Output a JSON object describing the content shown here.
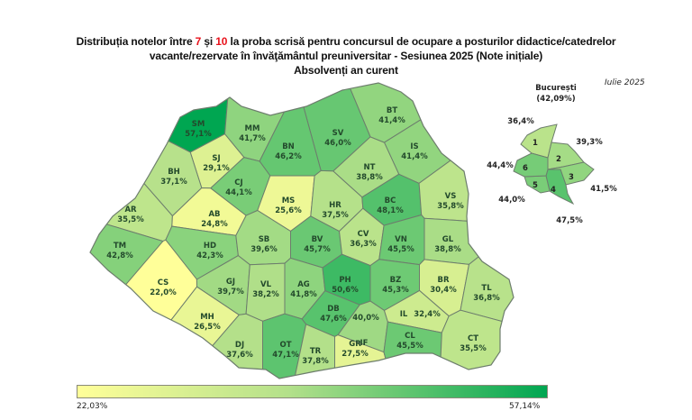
{
  "title": {
    "line1_a": "Distribuția notelor între ",
    "line1_7": "7",
    "line1_b": " și ",
    "line1_10": "10",
    "line1_c": " la proba scrisă pentru concursul de ocupare a posturilor didactice/catedrelor",
    "line2": "vacante/rezervate în învăţământul preuniversitar - Sesiunea 2025 (Note inițiale)",
    "line3": "Absolvenți an curent"
  },
  "date": "Iulie 2025",
  "colors": {
    "scale_low": "#ffff99",
    "scale_mid": "#b3e08a",
    "scale_high": "#00a651",
    "border": "#6d7d6d",
    "label": "#234a2c",
    "highlight": "#e8111b"
  },
  "legend": {
    "min_label": "22,03%",
    "max_label": "57,14%",
    "min": 22.03,
    "max": 57.14
  },
  "counties": [
    {
      "code": "SM",
      "value": 57.1,
      "label": "57,1%"
    },
    {
      "code": "MM",
      "value": 41.7,
      "label": "41,7%"
    },
    {
      "code": "BT",
      "value": 41.4,
      "label": "41,4%"
    },
    {
      "code": "SV",
      "value": 46.0,
      "label": "46,0%"
    },
    {
      "code": "BN",
      "value": 46.2,
      "label": "46,2%"
    },
    {
      "code": "IS",
      "value": 41.4,
      "label": "41,4%"
    },
    {
      "code": "SJ",
      "value": 29.1,
      "label": "29,1%"
    },
    {
      "code": "BH",
      "value": 37.1,
      "label": "37,1%"
    },
    {
      "code": "CJ",
      "value": 44.1,
      "label": "44,1%"
    },
    {
      "code": "NT",
      "value": 38.8,
      "label": "38,8%"
    },
    {
      "code": "MS",
      "value": 25.6,
      "label": "25,6%"
    },
    {
      "code": "AR",
      "value": 35.5,
      "label": "35,5%"
    },
    {
      "code": "AB",
      "value": 24.8,
      "label": "24,8%"
    },
    {
      "code": "HR",
      "value": 37.5,
      "label": "37,5%"
    },
    {
      "code": "BC",
      "value": 48.1,
      "label": "48,1%"
    },
    {
      "code": "VS",
      "value": 35.8,
      "label": "35,8%"
    },
    {
      "code": "TM",
      "value": 42.8,
      "label": "42,8%"
    },
    {
      "code": "HD",
      "value": 42.3,
      "label": "42,3%"
    },
    {
      "code": "SB",
      "value": 39.6,
      "label": "39,6%"
    },
    {
      "code": "BV",
      "value": 45.7,
      "label": "45,7%"
    },
    {
      "code": "CV",
      "value": 36.3,
      "label": "36,3%"
    },
    {
      "code": "VN",
      "value": 45.5,
      "label": "45,5%"
    },
    {
      "code": "GL",
      "value": 38.8,
      "label": "38,8%"
    },
    {
      "code": "CS",
      "value": 22.0,
      "label": "22,0%"
    },
    {
      "code": "GJ",
      "value": 39.7,
      "label": "39,7%"
    },
    {
      "code": "VL",
      "value": 38.2,
      "label": "38,2%"
    },
    {
      "code": "AG",
      "value": 41.8,
      "label": "41,8%"
    },
    {
      "code": "PH",
      "value": 50.6,
      "label": "50,6%"
    },
    {
      "code": "BZ",
      "value": 45.3,
      "label": "45,3%"
    },
    {
      "code": "BR",
      "value": 30.4,
      "label": "30,4%"
    },
    {
      "code": "TL",
      "value": 36.8,
      "label": "36,8%"
    },
    {
      "code": "MH",
      "value": 26.5,
      "label": "26,5%"
    },
    {
      "code": "DB",
      "value": 47.6,
      "label": "47,6%"
    },
    {
      "code": "IF",
      "value": 40.0,
      "label": "40,0%"
    },
    {
      "code": "IL",
      "value": 32.4,
      "label": "32,4%"
    },
    {
      "code": "DJ",
      "value": 37.6,
      "label": "37,6%"
    },
    {
      "code": "OT",
      "value": 47.1,
      "label": "47,1%"
    },
    {
      "code": "TR",
      "value": 37.8,
      "label": "37,8%"
    },
    {
      "code": "GR",
      "value": 27.5,
      "label": "27,5%"
    },
    {
      "code": "CL",
      "value": 45.5,
      "label": "45,5%"
    },
    {
      "code": "CT",
      "value": 35.5,
      "label": "35,5%"
    }
  ],
  "bucharest": {
    "name": "București",
    "total_label": "(42,09%)",
    "sectors": [
      {
        "number": "1",
        "value": 36.4,
        "label": "36,4%"
      },
      {
        "number": "2",
        "value": 39.3,
        "label": "39,3%"
      },
      {
        "number": "3",
        "value": 41.5,
        "label": "41,5%"
      },
      {
        "number": "4",
        "value": 47.5,
        "label": "47,5%"
      },
      {
        "number": "5",
        "value": 44.0,
        "label": "44,0%"
      },
      {
        "number": "6",
        "value": 44.4,
        "label": "44,4%"
      }
    ]
  }
}
